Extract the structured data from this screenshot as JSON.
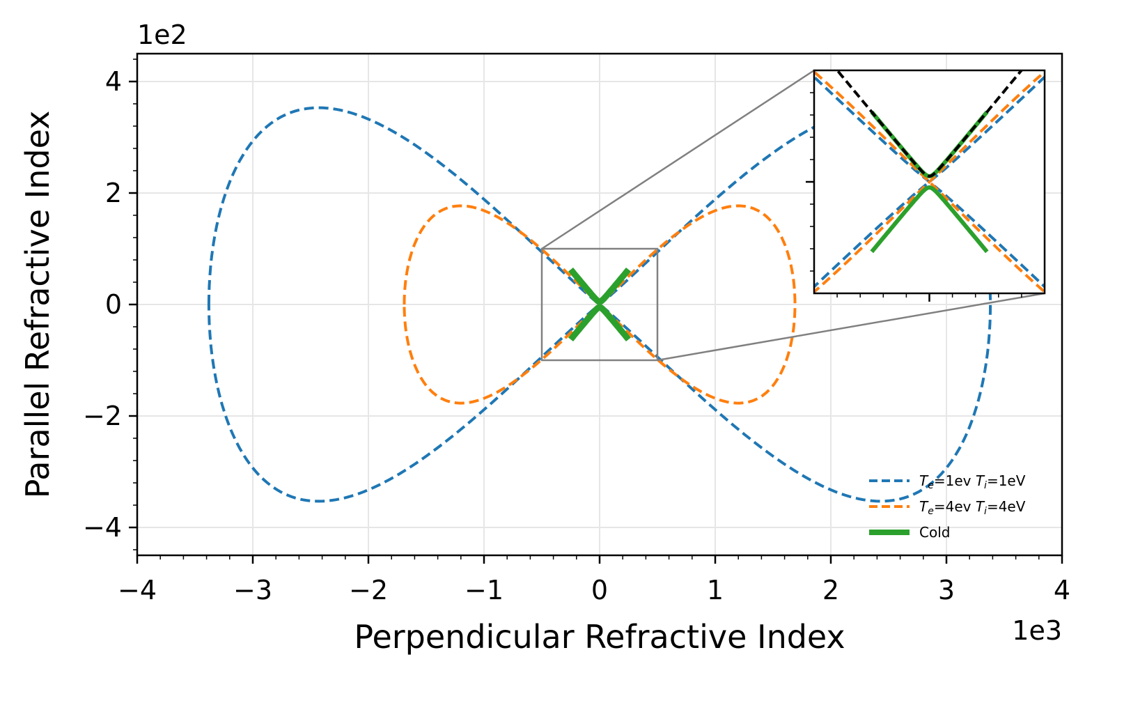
{
  "chart_data": {
    "type": "line",
    "xlabel": "Perpendicular Refractive Index",
    "ylabel": "Parallel Refractive Index",
    "x_offset_text": "1e3",
    "y_offset_text": "1e2",
    "xlim": [
      -4,
      4
    ],
    "ylim": [
      -4.5,
      4.5
    ],
    "x_ticks": [
      -4,
      -3,
      -2,
      -1,
      0,
      1,
      2,
      3,
      4
    ],
    "x_tick_labels": [
      "−4",
      "−3",
      "−2",
      "−1",
      "0",
      "1",
      "2",
      "3",
      "4"
    ],
    "y_ticks": [
      -4,
      -2,
      0,
      2,
      4
    ],
    "y_tick_labels": [
      "−4",
      "−2",
      "0",
      "2",
      "4"
    ],
    "grid": true,
    "legend_position": "lower-right",
    "series": [
      {
        "name_main": "T",
        "name_parts": [
          "e",
          "=1ev ",
          "T",
          "i",
          "=1eV"
        ],
        "color": "#1f77b4",
        "style": "dashed",
        "kind": "lemniscate",
        "params": {
          "x_extent": 3.38,
          "y_peak": 3.53,
          "x_at_peak": 2.43
        }
      },
      {
        "name_main": "T",
        "name_parts": [
          "e",
          "=4ev ",
          "T",
          "i",
          "=4eV"
        ],
        "color": "#ff7f0e",
        "style": "dashed",
        "kind": "lemniscate",
        "params": {
          "x_extent": 1.69,
          "y_peak": 1.77,
          "x_at_peak": 1.2
        }
      },
      {
        "name": "Cold",
        "color": "#2ca02c",
        "style": "solid",
        "kind": "hyperbola-x",
        "params": {
          "x_extent": 0.25,
          "vertex": 0.05,
          "slope": 2.5
        }
      }
    ],
    "zoom_box": {
      "x": [
        -0.5,
        0.5
      ],
      "y": [
        -1.0,
        1.0
      ]
    },
    "inset": {
      "xlim": [
        -0.5,
        0.5
      ],
      "ylim": [
        -1.0,
        1.0
      ],
      "position": "upper-right",
      "extra_series": {
        "color": "#000000",
        "style": "dashed"
      }
    }
  }
}
